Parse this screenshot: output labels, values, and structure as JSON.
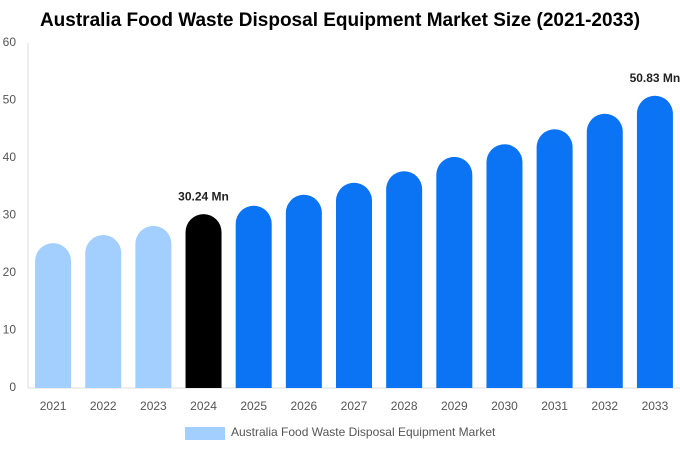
{
  "chart_data": {
    "type": "bar",
    "title": "Australia Food Waste Disposal Equipment Market Size (2021-2033)",
    "categories": [
      "2021",
      "2022",
      "2023",
      "2024",
      "2025",
      "2026",
      "2027",
      "2028",
      "2029",
      "2030",
      "2031",
      "2032",
      "2033"
    ],
    "series": [
      {
        "name": "Australia Food Waste Disposal Equipment Market",
        "color": "#a3cfff",
        "values": [
          25.2,
          26.6,
          28.2,
          30.24,
          31.7,
          33.6,
          35.7,
          37.7,
          40.2,
          42.4,
          45.0,
          47.7,
          50.83
        ],
        "value_labels": [
          null,
          null,
          null,
          "30.24 Mn",
          null,
          null,
          null,
          null,
          null,
          null,
          null,
          null,
          "50.83 Mn"
        ],
        "point_colors": [
          "#a3cfff",
          "#a3cfff",
          "#a3cfff",
          "#000000",
          "#0a74f5",
          "#0a74f5",
          "#0a74f5",
          "#0a74f5",
          "#0a74f5",
          "#0a74f5",
          "#0a74f5",
          "#0a74f5",
          "#0a74f5"
        ]
      }
    ],
    "ylim": [
      0,
      60
    ],
    "yticks": [
      0,
      10,
      20,
      30,
      40,
      50,
      60
    ],
    "grid": false
  }
}
